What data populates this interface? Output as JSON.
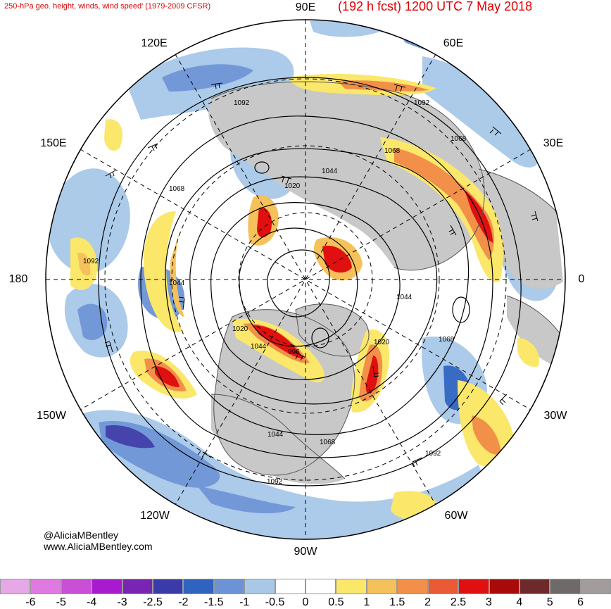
{
  "header": {
    "left_title": "250-hPa geo. height, winds, wind speed' (1979-2009 CFSR)",
    "right_title": "(192 h fcst) 1200 UTC 7 May 2018"
  },
  "longitude_labels": {
    "lon_90e": "90E",
    "lon_60e": "60E",
    "lon_30e": "30E",
    "lon_0": "0",
    "lon_30w": "30W",
    "lon_60w": "60W",
    "lon_90w": "90W",
    "lon_120w": "120W",
    "lon_150w": "150W",
    "lon_180": "180",
    "lon_150e": "150E",
    "lon_120e": "120E"
  },
  "height_contour_labels": [
    "1092",
    "1092",
    "1068",
    "1068",
    "1020",
    "1044",
    "1092",
    "1044",
    "1044",
    "1020",
    "1068",
    "1020",
    "1044",
    "996",
    "1068",
    "1092",
    "1092",
    "1068",
    "1044"
  ],
  "credit": {
    "line1": "@AliciaMBentley",
    "line2": "www.AliciaMBentley.com"
  },
  "colorbar": {
    "ticks": [
      "-6",
      "-5",
      "-4",
      "-3",
      "-2.5",
      "-2",
      "-1.5",
      "-1",
      "-0.5",
      "0",
      "0.5",
      "1",
      "1.5",
      "2",
      "2.5",
      "3",
      "4",
      "5",
      "6"
    ],
    "colors": [
      "#e6a8e6",
      "#e07ae0",
      "#c94fd6",
      "#a81ad0",
      "#7a24b4",
      "#3a3aa8",
      "#2e64c0",
      "#6b93d6",
      "#a8c8e8",
      "#ffffff",
      "#ffffff",
      "#fbe76a",
      "#f5c15a",
      "#f2904a",
      "#ea5a34",
      "#e01010",
      "#a80a0a",
      "#6e2a2a",
      "#6e6a6a",
      "#a39c9c"
    ]
  },
  "palette": {
    "land": "#c8c8c8",
    "coast": "#555555",
    "contour": "#000000",
    "grid": "#000000",
    "jet_core": "#e01010",
    "jet_mid": "#f2904a",
    "jet_edge": "#fbe76a",
    "neg_light": "#a8c8e8",
    "neg_mid": "#6b93d6",
    "neg_dark": "#2e64c0"
  }
}
